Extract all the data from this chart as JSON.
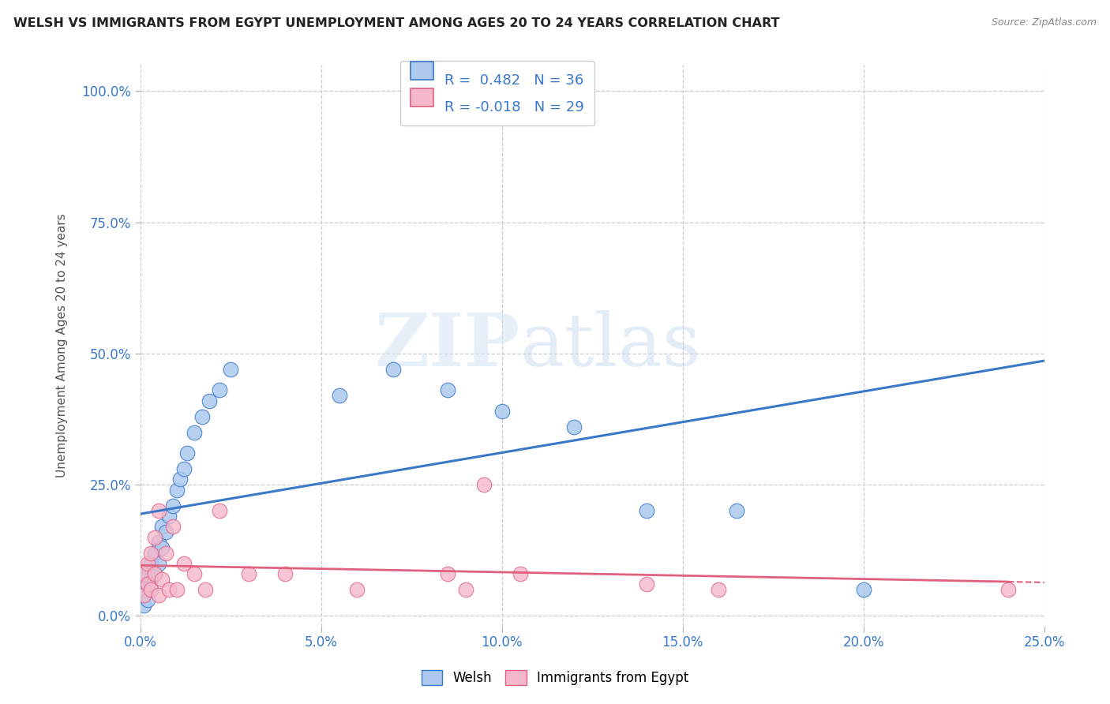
{
  "title": "WELSH VS IMMIGRANTS FROM EGYPT UNEMPLOYMENT AMONG AGES 20 TO 24 YEARS CORRELATION CHART",
  "source": "Source: ZipAtlas.com",
  "ylabel_label": "Unemployment Among Ages 20 to 24 years",
  "legend_welsh": "Welsh",
  "legend_egypt": "Immigrants from Egypt",
  "R_welsh": 0.482,
  "N_welsh": 36,
  "R_egypt": -0.018,
  "N_egypt": 29,
  "welsh_color": "#adc9ee",
  "welsh_line_color": "#3a78c9",
  "egypt_color": "#f5b8cb",
  "egypt_line_color": "#e06080",
  "background_color": "#ffffff",
  "watermark_zip": "ZIP",
  "watermark_atlas": "atlas",
  "xlim": [
    0.0,
    0.25
  ],
  "ylim": [
    -0.02,
    1.05
  ],
  "xgrid_vals": [
    0.0,
    0.05,
    0.1,
    0.15,
    0.2,
    0.25
  ],
  "ygrid_vals": [
    0.0,
    0.25,
    0.5,
    0.75,
    1.0
  ],
  "welsh_x": [
    0.001,
    0.001,
    0.001,
    0.002,
    0.002,
    0.002,
    0.003,
    0.003,
    0.003,
    0.004,
    0.004,
    0.005,
    0.005,
    0.006,
    0.006,
    0.007,
    0.008,
    0.009,
    0.01,
    0.011,
    0.012,
    0.013,
    0.015,
    0.017,
    0.019,
    0.022,
    0.025,
    0.055,
    0.07,
    0.085,
    0.1,
    0.12,
    0.14,
    0.165,
    0.2,
    0.095
  ],
  "welsh_y": [
    0.02,
    0.04,
    0.05,
    0.03,
    0.06,
    0.08,
    0.05,
    0.07,
    0.1,
    0.08,
    0.12,
    0.1,
    0.14,
    0.13,
    0.17,
    0.16,
    0.19,
    0.21,
    0.24,
    0.26,
    0.28,
    0.31,
    0.35,
    0.38,
    0.41,
    0.43,
    0.47,
    0.42,
    0.47,
    0.43,
    0.39,
    0.36,
    0.2,
    0.2,
    0.05,
    1.0
  ],
  "egypt_x": [
    0.001,
    0.001,
    0.002,
    0.002,
    0.003,
    0.003,
    0.004,
    0.004,
    0.005,
    0.005,
    0.006,
    0.007,
    0.008,
    0.009,
    0.01,
    0.012,
    0.015,
    0.018,
    0.022,
    0.03,
    0.04,
    0.06,
    0.085,
    0.09,
    0.095,
    0.105,
    0.14,
    0.16,
    0.24
  ],
  "egypt_y": [
    0.04,
    0.08,
    0.06,
    0.1,
    0.05,
    0.12,
    0.08,
    0.15,
    0.04,
    0.2,
    0.07,
    0.12,
    0.05,
    0.17,
    0.05,
    0.1,
    0.08,
    0.05,
    0.2,
    0.08,
    0.08,
    0.05,
    0.08,
    0.05,
    0.25,
    0.08,
    0.06,
    0.05,
    0.05
  ]
}
